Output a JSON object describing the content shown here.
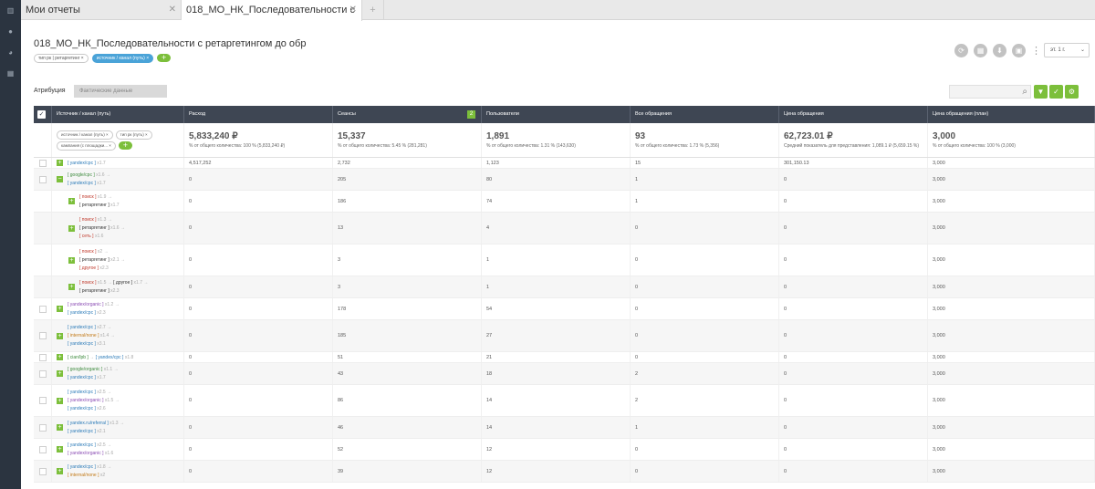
{
  "tabs": [
    {
      "label": "Мои отчеты"
    },
    {
      "label": "018_МО_НК_Последовательности с"
    },
    {
      "label": "+"
    }
  ],
  "report": {
    "title": "018_МО_НК_Последовательности с ретаргетингом до обр",
    "chips": [
      "тип рк | ретаргетинг",
      "источник / канал (путь)"
    ],
    "period": "эт. 1 г."
  },
  "attribution": {
    "label": "Атрибуция",
    "value": "Фактические данные"
  },
  "columns": [
    "Источник / канал (путь)",
    "Расход",
    "Сеансы",
    "Пользователи",
    "Все обращения",
    "Цена обращения",
    "Цена обращения (план)"
  ],
  "sort_badge": "2",
  "filter_chips": [
    "источник / канал (путь)",
    "тип рк (путь)",
    "кампания (с площадки..."
  ],
  "totals": [
    {
      "value": "5,833,240 ₽",
      "sub": "% от общего количества: 100 % (5,833,240 ₽)"
    },
    {
      "value": "15,337",
      "sub": "% от общего количества: 5.45 % (281,281)"
    },
    {
      "value": "1,891",
      "sub": "% от общего количества: 1.31 % (143,630)"
    },
    {
      "value": "93",
      "sub": "% от общего количества: 1.73 % (5,356)"
    },
    {
      "value": "62,723.01 ₽",
      "sub": "Средний показатель для представления: 1,089.1 ₽ (5,659.15 %)"
    },
    {
      "value": "3,000",
      "sub": "% от общего количества: 100 % (3,000)"
    }
  ],
  "rows": [
    {
      "lines": [
        [
          [
            "[ yandex/cpc ]",
            "blue"
          ],
          [
            "x1.7",
            "m"
          ]
        ]
      ],
      "vals": [
        "4,517,252",
        "2,732",
        "1,123",
        "15",
        "301,150.13",
        "3,000"
      ]
    },
    {
      "lines": [
        [
          [
            "[ google/cpc ]",
            "green"
          ],
          [
            "x1.6  →",
            "m"
          ]
        ],
        [
          [
            "[ yandex/cpc ]",
            "blue"
          ],
          [
            "x1.7",
            "m"
          ]
        ]
      ],
      "vals": [
        "0",
        "205",
        "80",
        "1",
        "0",
        "3,000"
      ]
    },
    {
      "lines": [
        [
          [
            "[ поиск ]",
            "red"
          ],
          [
            "x1.9  →",
            "m"
          ]
        ],
        [
          [
            "[ ретаргетинг ]",
            "dark"
          ],
          [
            "x1.7",
            "m"
          ]
        ]
      ],
      "vals": [
        "0",
        "186",
        "74",
        "1",
        "0",
        "3,000"
      ]
    },
    {
      "lines": [
        [
          [
            "[ поиск ]",
            "red"
          ],
          [
            "x1.3  →",
            "m"
          ]
        ],
        [
          [
            "[ ретаргетинг ]",
            "dark"
          ],
          [
            "x1.6  →",
            "m"
          ]
        ],
        [
          [
            "[ сеть ]",
            "red"
          ],
          [
            "x1.6",
            "m"
          ]
        ]
      ],
      "vals": [
        "0",
        "13",
        "4",
        "0",
        "0",
        "3,000"
      ]
    },
    {
      "lines": [
        [
          [
            "[ поиск ]",
            "red"
          ],
          [
            "x2  →",
            "m"
          ]
        ],
        [
          [
            "[ ретаргетинг ]",
            "dark"
          ],
          [
            "x2.1  →",
            "m"
          ]
        ],
        [
          [
            "[ другое ]",
            "red"
          ],
          [
            "x2.3",
            "m"
          ]
        ]
      ],
      "vals": [
        "0",
        "3",
        "1",
        "0",
        "0",
        "3,000"
      ]
    },
    {
      "lines": [
        [
          [
            "[ поиск ]",
            "red"
          ],
          [
            "x1.5  →",
            "m"
          ],
          [
            "[ другое ]",
            "dark"
          ],
          [
            "x1.7  →",
            "m"
          ]
        ],
        [
          [
            "[ ретаргетинг ]",
            "dark"
          ],
          [
            "x2.3",
            "m"
          ]
        ]
      ],
      "vals": [
        "0",
        "3",
        "1",
        "0",
        "0",
        "3,000"
      ]
    },
    {
      "lines": [
        [
          [
            "[ yandex/organic ]",
            "purple"
          ],
          [
            "x1.2  →",
            "m"
          ]
        ],
        [
          [
            "[ yandex/cpc ]",
            "blue"
          ],
          [
            "x2.3",
            "m"
          ]
        ]
      ],
      "vals": [
        "0",
        "178",
        "54",
        "0",
        "0",
        "3,000"
      ]
    },
    {
      "lines": [
        [
          [
            "[ yandex/cpc ]",
            "blue"
          ],
          [
            "x2.7  →",
            "m"
          ]
        ],
        [
          [
            "[ internal/none ]",
            "orange"
          ],
          [
            "x1.4  →",
            "m"
          ]
        ],
        [
          [
            "[ yandex/cpc ]",
            "blue"
          ],
          [
            "x3.1",
            "m"
          ]
        ]
      ],
      "vals": [
        "0",
        "185",
        "27",
        "0",
        "0",
        "3,000"
      ]
    },
    {
      "lines": [
        [
          [
            "[ cian/lpb ]",
            "green"
          ],
          [
            "→",
            "m"
          ],
          [
            "[ yandex/cpc ]",
            "blue"
          ],
          [
            "x1.8",
            "m"
          ]
        ]
      ],
      "vals": [
        "0",
        "51",
        "21",
        "0",
        "0",
        "3,000"
      ]
    },
    {
      "lines": [
        [
          [
            "[ google/organic ]",
            "green"
          ],
          [
            "x1.1  →",
            "m"
          ]
        ],
        [
          [
            "[ yandex/cpc ]",
            "blue"
          ],
          [
            "x1.7",
            "m"
          ]
        ]
      ],
      "vals": [
        "0",
        "43",
        "18",
        "2",
        "0",
        "3,000"
      ]
    },
    {
      "lines": [
        [
          [
            "[ yandex/cpc ]",
            "blue"
          ],
          [
            "x2.5  →",
            "m"
          ]
        ],
        [
          [
            "[ yandex/organic ]",
            "purple"
          ],
          [
            "x1.5  →",
            "m"
          ]
        ],
        [
          [
            "[ yandex/cpc ]",
            "blue"
          ],
          [
            "x2.6",
            "m"
          ]
        ]
      ],
      "vals": [
        "0",
        "86",
        "14",
        "2",
        "0",
        "3,000"
      ]
    },
    {
      "lines": [
        [
          [
            "[ yandex.ru/referral ]",
            "blue"
          ],
          [
            "x1.3  →",
            "m"
          ]
        ],
        [
          [
            "[ yandex/cpc ]",
            "blue"
          ],
          [
            "x2.1",
            "m"
          ]
        ]
      ],
      "vals": [
        "0",
        "46",
        "14",
        "1",
        "0",
        "3,000"
      ]
    },
    {
      "lines": [
        [
          [
            "[ yandex/cpc ]",
            "blue"
          ],
          [
            "x2.5  →",
            "m"
          ]
        ],
        [
          [
            "[ yandex/organic ]",
            "purple"
          ],
          [
            "x1.6",
            "m"
          ]
        ]
      ],
      "vals": [
        "0",
        "52",
        "12",
        "0",
        "0",
        "3,000"
      ]
    },
    {
      "lines": [
        [
          [
            "[ yandex/cpc ]",
            "blue"
          ],
          [
            "x1.8  →",
            "m"
          ]
        ],
        [
          [
            "[ internal/none ]",
            "orange"
          ],
          [
            "x2",
            "m"
          ]
        ]
      ],
      "vals": [
        "0",
        "39",
        "12",
        "0",
        "0",
        "3,000"
      ]
    }
  ]
}
